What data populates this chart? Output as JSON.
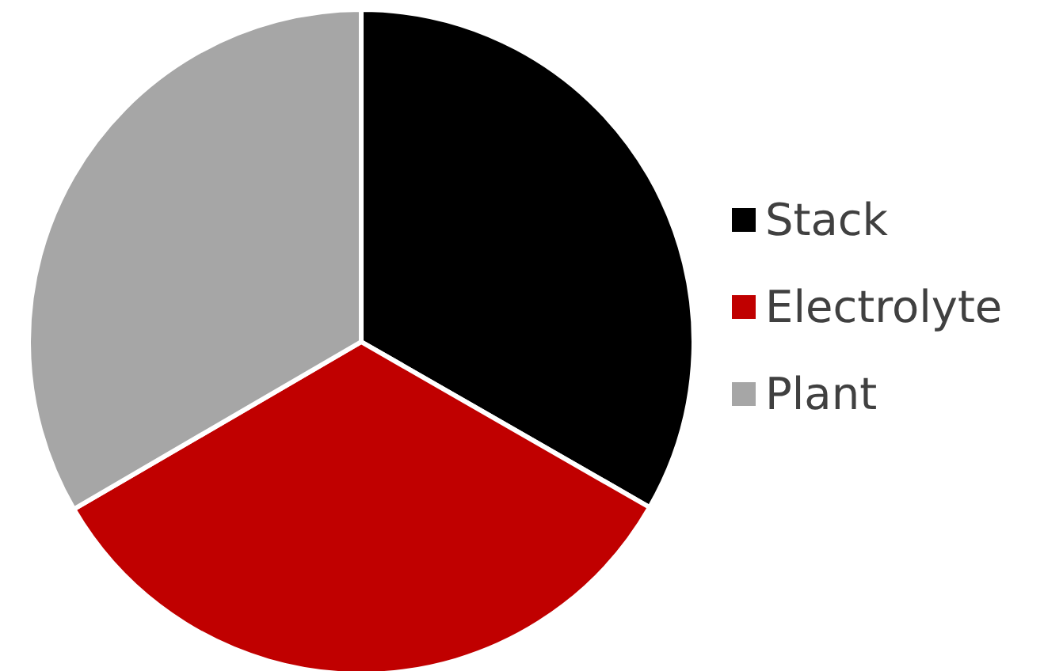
{
  "chart_data": {
    "type": "pie",
    "categories": [
      "Stack",
      "Electrolyte",
      "Plant"
    ],
    "values": [
      33.3,
      33.3,
      33.4
    ],
    "colors": [
      "#000000",
      "#c00000",
      "#a6a6a6"
    ],
    "legend": "right"
  }
}
